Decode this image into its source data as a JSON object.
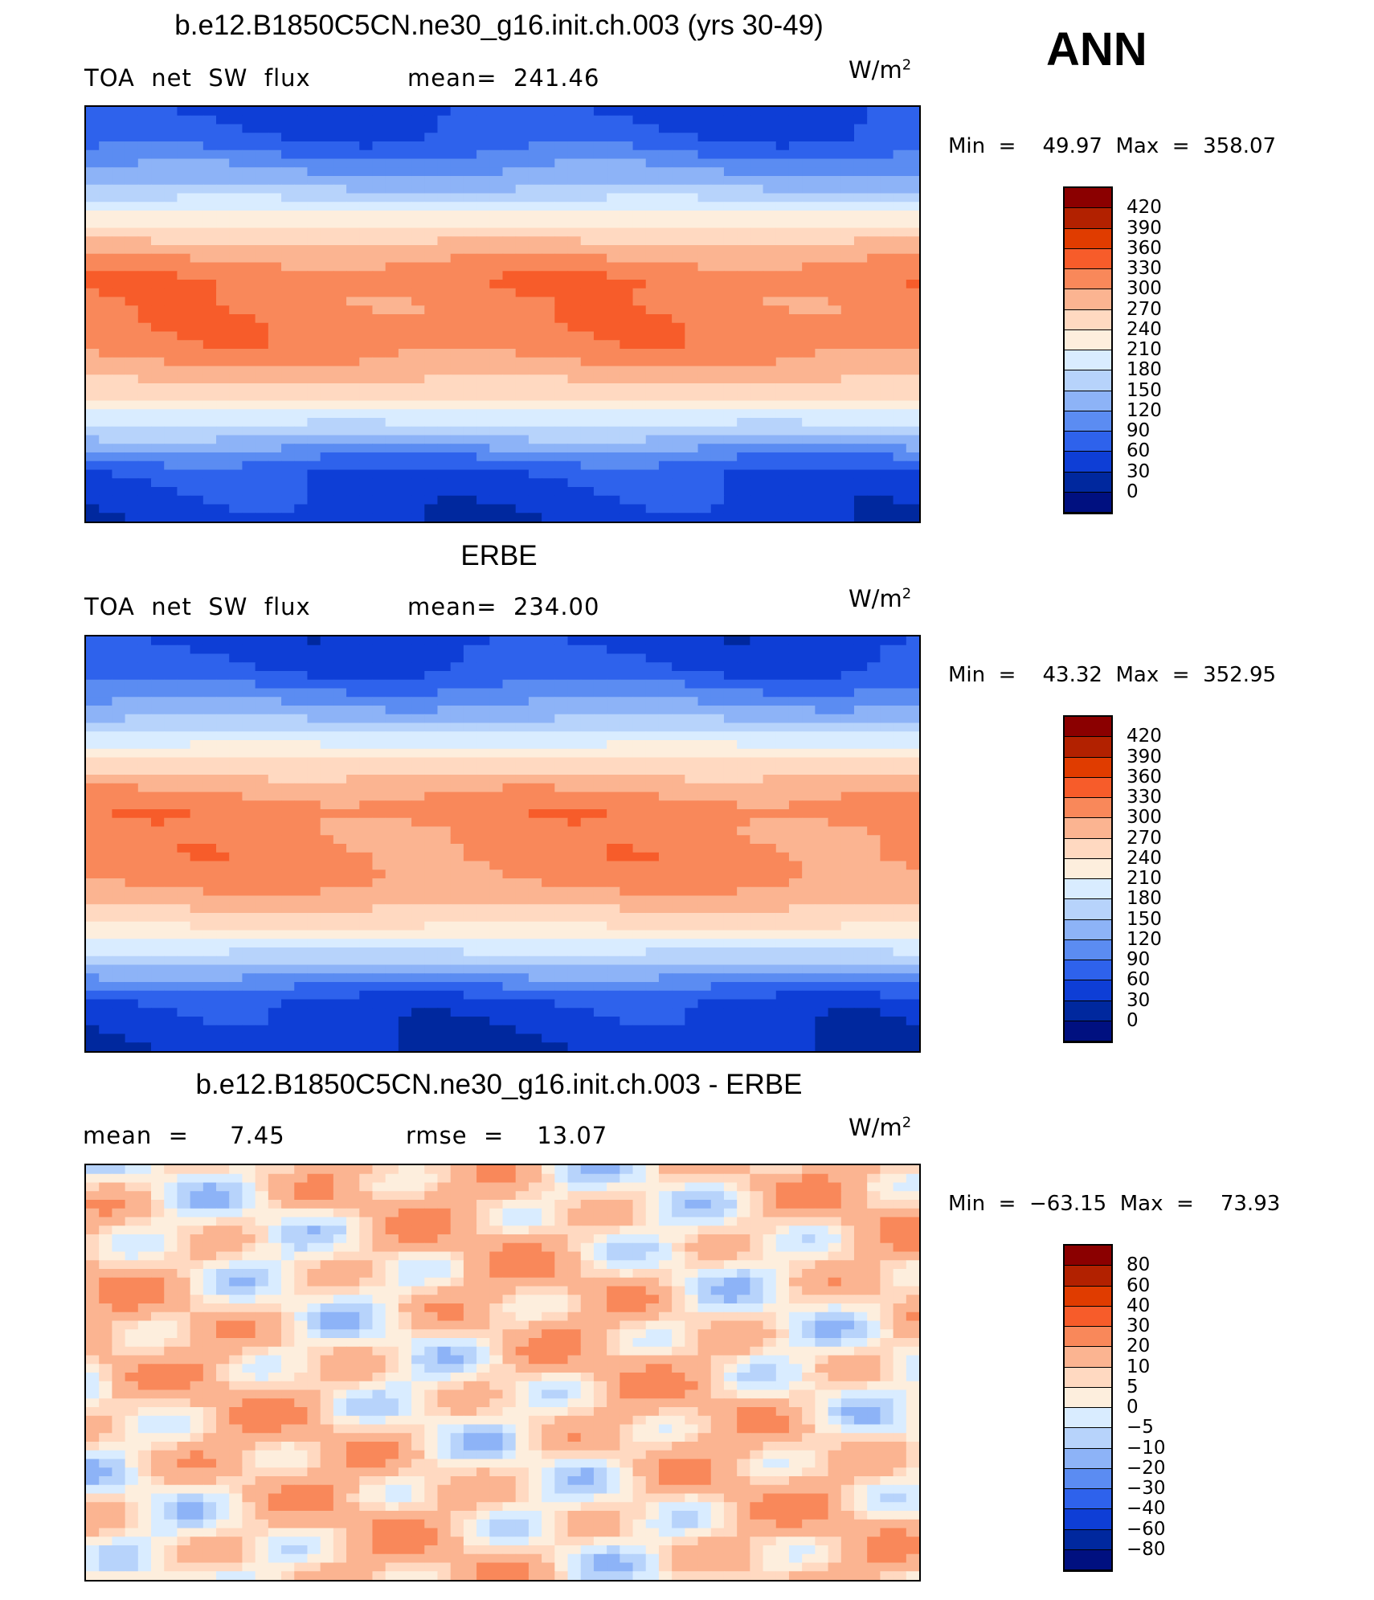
{
  "season": "ANN",
  "units_main": "W/m",
  "units_exp": "2",
  "chart_data": [
    {
      "type": "heatmap",
      "title": "b.e12.B1850C5CN.ne30_g16.init.ch.003 (yrs 30-49)",
      "left_label": "TOA  net  SW  flux",
      "stat_text": "mean=  241.46",
      "min_text": "Min  =    49.97  Max  =  358.07",
      "min": 49.97,
      "max": 358.07,
      "mean": 241.46,
      "levels": [
        "420",
        "390",
        "360",
        "330",
        "300",
        "270",
        "240",
        "210",
        "180",
        "150",
        "120",
        "90",
        "60",
        "30",
        "0"
      ],
      "colors": [
        "#8b0000",
        "#b22100",
        "#e03c00",
        "#f75c2a",
        "#f9885a",
        "#fbb491",
        "#ffd9c1",
        "#fdeedd",
        "#d9ecff",
        "#b7d3fb",
        "#8db3f7",
        "#5b8cf2",
        "#2e62ec",
        "#0e3ed6",
        "#00289e",
        "#001080"
      ]
    },
    {
      "type": "heatmap",
      "title": "ERBE",
      "left_label": "TOA  net  SW  flux",
      "stat_text": "mean=  234.00",
      "min_text": "Min  =    43.32  Max  =  352.95",
      "min": 43.32,
      "max": 352.95,
      "mean": 234.0,
      "levels": [
        "420",
        "390",
        "360",
        "330",
        "300",
        "270",
        "240",
        "210",
        "180",
        "150",
        "120",
        "90",
        "60",
        "30",
        "0"
      ],
      "colors": [
        "#8b0000",
        "#b22100",
        "#e03c00",
        "#f75c2a",
        "#f9885a",
        "#fbb491",
        "#ffd9c1",
        "#fdeedd",
        "#d9ecff",
        "#b7d3fb",
        "#8db3f7",
        "#5b8cf2",
        "#2e62ec",
        "#0e3ed6",
        "#00289e",
        "#001080"
      ]
    },
    {
      "type": "heatmap",
      "title": "b.e12.B1850C5CN.ne30_g16.init.ch.003 - ERBE",
      "left_label": "mean  =     7.45",
      "stat_text": "rmse  =    13.07",
      "min_text": "Min  =  −63.15  Max  =    73.93",
      "min": -63.15,
      "max": 73.93,
      "mean": 7.45,
      "rmse": 13.07,
      "levels": [
        "80",
        "60",
        "40",
        "30",
        "20",
        "10",
        "5",
        "0",
        "−5",
        "−10",
        "−20",
        "−30",
        "−40",
        "−60",
        "−80"
      ],
      "colors": [
        "#8b0000",
        "#b22100",
        "#e03c00",
        "#f75c2a",
        "#f9885a",
        "#fbb491",
        "#ffd9c1",
        "#fdeedd",
        "#d9ecff",
        "#b7d3fb",
        "#8db3f7",
        "#5b8cf2",
        "#2e62ec",
        "#0e3ed6",
        "#00289e",
        "#001080"
      ]
    }
  ]
}
